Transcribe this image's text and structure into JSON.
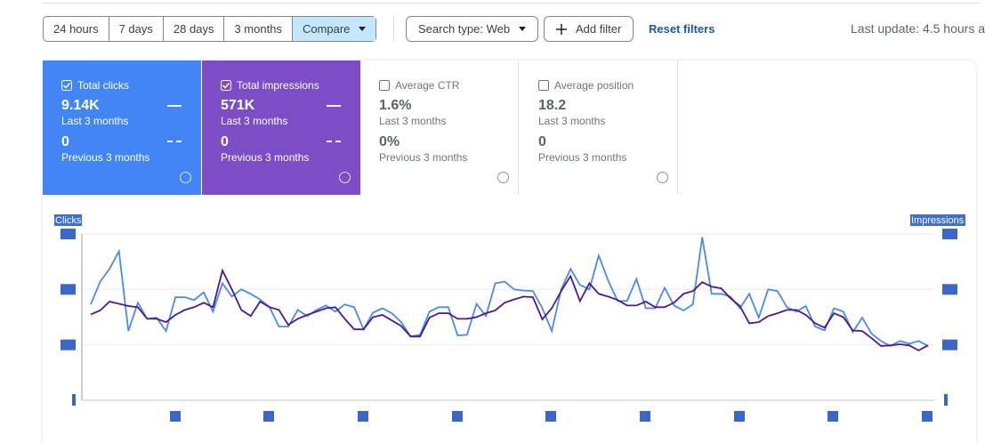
{
  "toolbar": {
    "ranges": [
      "24 hours",
      "7 days",
      "28 days",
      "3 months"
    ],
    "compare": "Compare",
    "search_type": "Search type: Web",
    "add_filter": "Add filter",
    "reset_filters": "Reset filters",
    "last_update": "Last update: 4.5 hours a"
  },
  "metrics": [
    {
      "label": "Total clicks",
      "value": "9.14K",
      "period": "Last 3 months",
      "prev_value": "0",
      "prev_period": "Previous 3 months"
    },
    {
      "label": "Total impressions",
      "value": "571K",
      "period": "Last 3 months",
      "prev_value": "0",
      "prev_period": "Previous 3 months"
    },
    {
      "label": "Average CTR",
      "value": "1.6%",
      "period": "Last 3 months",
      "prev_value": "0%",
      "prev_period": "Previous 3 months"
    },
    {
      "label": "Average position",
      "value": "18.2",
      "period": "Last 3 months",
      "prev_value": "0",
      "prev_period": "Previous 3 months"
    }
  ],
  "chart_data": {
    "type": "line",
    "y_label": "Clicks",
    "y2_label": "Impressions",
    "ylim": [
      0,
      3
    ],
    "y2lim": [
      0,
      3
    ],
    "grid": true,
    "series": [
      {
        "name": "Clicks",
        "color": "#4a8ae8",
        "values": [
          1.73,
          2.14,
          2.37,
          2.69,
          1.25,
          1.76,
          1.47,
          1.49,
          1.25,
          1.86,
          1.86,
          1.81,
          1.95,
          1.6,
          2.11,
          1.87,
          2.0,
          1.92,
          1.82,
          1.68,
          1.33,
          1.33,
          1.63,
          1.52,
          1.63,
          1.71,
          1.6,
          1.73,
          1.68,
          1.28,
          1.58,
          1.66,
          1.57,
          1.41,
          1.15,
          1.18,
          1.6,
          1.68,
          1.68,
          1.17,
          1.18,
          1.74,
          1.52,
          2.11,
          2.14,
          2.0,
          1.98,
          1.97,
          1.66,
          1.25,
          2.0,
          2.37,
          2.08,
          2.0,
          2.61,
          2.16,
          1.79,
          1.79,
          2.19,
          1.66,
          1.66,
          2.03,
          1.71,
          1.62,
          1.73,
          2.94,
          1.92,
          1.92,
          1.87,
          1.66,
          1.92,
          1.49,
          2.0,
          1.97,
          1.68,
          1.6,
          1.7,
          1.33,
          1.26,
          1.66,
          1.6,
          1.23,
          1.49,
          1.2,
          1.07,
          0.98,
          1.07,
          1.02,
          1.07,
          0.98
        ]
      },
      {
        "name": "Impressions",
        "color": "#4b1a8c",
        "axis": "y2",
        "values": [
          1.55,
          1.62,
          1.78,
          1.74,
          1.7,
          1.68,
          1.47,
          1.47,
          1.41,
          1.54,
          1.63,
          1.68,
          1.76,
          1.68,
          2.34,
          2.0,
          1.63,
          1.52,
          1.78,
          1.68,
          1.63,
          1.36,
          1.47,
          1.54,
          1.6,
          1.66,
          1.68,
          1.47,
          1.28,
          1.28,
          1.5,
          1.54,
          1.44,
          1.34,
          1.15,
          1.15,
          1.49,
          1.57,
          1.57,
          1.47,
          1.47,
          1.5,
          1.57,
          1.62,
          1.76,
          1.82,
          1.87,
          1.86,
          1.46,
          1.66,
          1.97,
          2.24,
          1.79,
          2.11,
          1.92,
          1.87,
          1.81,
          1.71,
          1.71,
          1.78,
          1.68,
          1.68,
          1.76,
          1.92,
          1.97,
          2.13,
          2.05,
          2.02,
          1.84,
          1.7,
          1.39,
          1.41,
          1.52,
          1.57,
          1.63,
          1.63,
          1.54,
          1.39,
          1.31,
          1.57,
          1.5,
          1.26,
          1.25,
          1.12,
          0.98,
          0.99,
          1.01,
          0.99,
          0.9,
          0.99
        ]
      }
    ]
  }
}
